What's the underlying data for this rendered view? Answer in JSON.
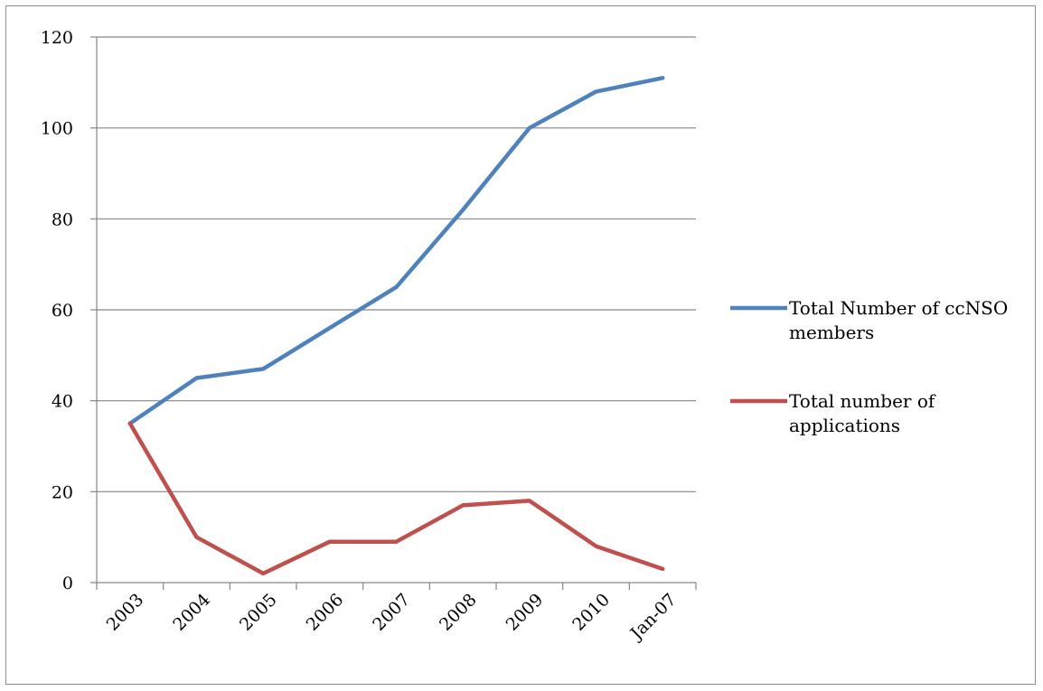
{
  "chart_data": {
    "type": "line",
    "title": "",
    "xlabel": "",
    "ylabel": "",
    "categories": [
      "2003",
      "2004",
      "2005",
      "2006",
      "2007",
      "2008",
      "2009",
      "2010",
      "Jan-07"
    ],
    "ylim": [
      0,
      120
    ],
    "yticks": [
      0,
      20,
      40,
      60,
      80,
      100,
      120
    ],
    "grid": true,
    "legend_position": "right",
    "series": [
      {
        "name_lines": [
          "Total Number of ccNSO",
          "members"
        ],
        "color": "#4f81bd",
        "values": [
          35,
          45,
          47,
          56,
          65,
          82,
          100,
          108,
          111
        ]
      },
      {
        "name_lines": [
          "Total number of",
          "applications"
        ],
        "color": "#c0504d",
        "values": [
          35,
          10,
          2,
          9,
          9,
          17,
          18,
          8,
          3
        ]
      }
    ]
  }
}
